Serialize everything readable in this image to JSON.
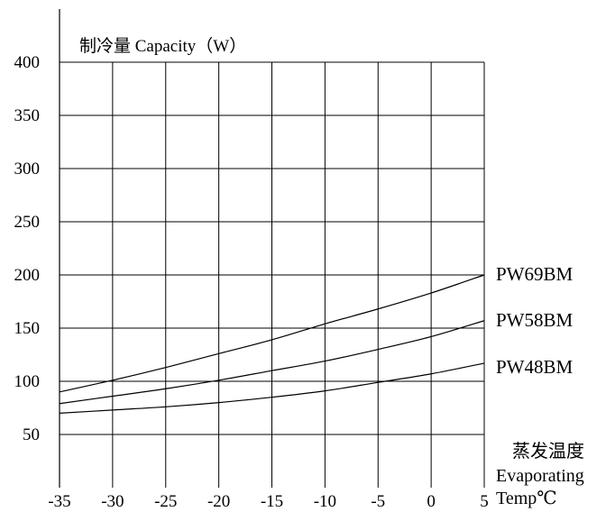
{
  "chart_data": {
    "type": "line",
    "title": "",
    "ylabel": "制冷量 Capacity（W）",
    "xlabel_lines": [
      "蒸发温度",
      "Evaporating",
      "Temp℃"
    ],
    "x_ticks": [
      -35,
      -30,
      -25,
      -20,
      -15,
      -10,
      -5,
      0,
      5
    ],
    "y_ticks": [
      50,
      100,
      150,
      200,
      250,
      300,
      350,
      400
    ],
    "xlim": [
      -35,
      5
    ],
    "ylim": [
      0,
      400
    ],
    "grid": true,
    "legend": "labels at right end of lines",
    "series": [
      {
        "name": "PW69BM",
        "x": [
          -35,
          -30,
          -25,
          -20,
          -15,
          -10,
          -5,
          0,
          5
        ],
        "y": [
          90,
          101,
          113,
          126,
          139,
          154,
          168,
          183,
          200
        ]
      },
      {
        "name": "PW58BM",
        "x": [
          -35,
          -30,
          -25,
          -20,
          -15,
          -10,
          -5,
          0,
          5
        ],
        "y": [
          79,
          86,
          93,
          101,
          110,
          119,
          130,
          142,
          157
        ]
      },
      {
        "name": "PW48BM",
        "x": [
          -35,
          -30,
          -25,
          -20,
          -15,
          -10,
          -5,
          0,
          5
        ],
        "y": [
          70,
          73,
          76,
          80,
          85,
          91,
          99,
          107,
          117
        ]
      }
    ]
  }
}
